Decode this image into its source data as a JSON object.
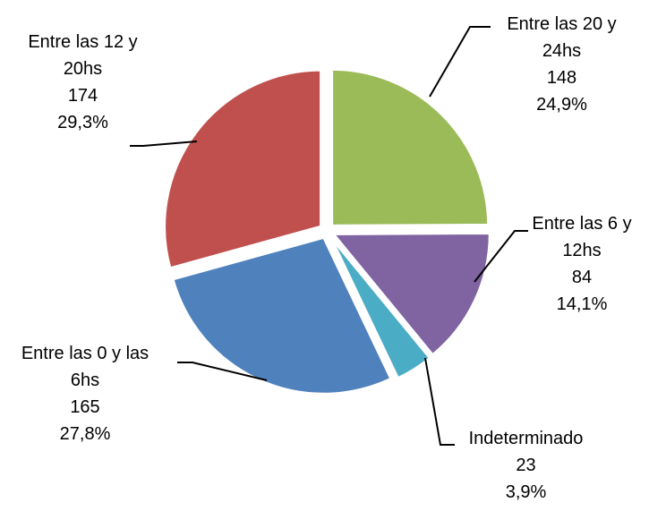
{
  "chart_data": {
    "type": "pie",
    "categories": [
      "Entre las 20 y 24hs",
      "Entre las 6 y 12hs",
      "Indeterminado",
      "Entre las 0 y las 6hs",
      "Entre las 12 y 20hs"
    ],
    "values": [
      148,
      84,
      23,
      165,
      174
    ],
    "percents": [
      24.9,
      14.1,
      3.9,
      27.8,
      29.3
    ],
    "percent_labels": [
      "24,9%",
      "14,1%",
      "3,9%",
      "27,8%",
      "29,3%"
    ],
    "colors": [
      "#9bbb59",
      "#8064a2",
      "#4bacc6",
      "#4f81bd",
      "#c0504d"
    ]
  }
}
